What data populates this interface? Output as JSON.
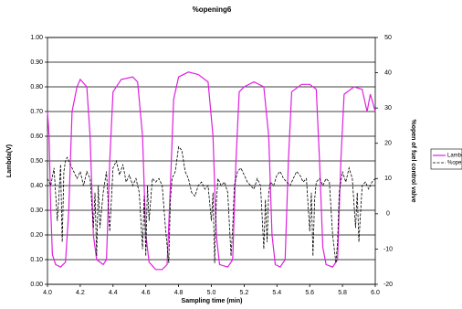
{
  "chart_data": {
    "type": "line",
    "title": "%opening6",
    "xlabel": "Sampling time (min)",
    "ylabel": "Lambda(V)",
    "y2label": "%open of fuel control valve",
    "xlim": [
      4.0,
      6.0
    ],
    "xticks": [
      {
        "value": 4.0,
        "label": "4.0"
      },
      {
        "value": 4.2,
        "label": "4.2"
      },
      {
        "value": 4.4,
        "label": "4.4"
      },
      {
        "value": 4.6,
        "label": "4.6"
      },
      {
        "value": 4.8,
        "label": "4.8"
      },
      {
        "value": 5.0,
        "label": "5.0"
      },
      {
        "value": 5.2,
        "label": "5.2"
      },
      {
        "value": 5.4,
        "label": "5.4"
      },
      {
        "value": 5.6,
        "label": "5.6"
      },
      {
        "value": 5.8,
        "label": "5.8"
      },
      {
        "value": 6.0,
        "label": "6.0"
      }
    ],
    "ylim": [
      0,
      1
    ],
    "yticks": [
      {
        "value": 0,
        "label": "0.00"
      },
      {
        "value": 0.1,
        "label": "0.10"
      },
      {
        "value": 0.2,
        "label": "0.20"
      },
      {
        "value": 0.3,
        "label": "0.30"
      },
      {
        "value": 0.4,
        "label": "0.40"
      },
      {
        "value": 0.5,
        "label": "0.50"
      },
      {
        "value": 0.6,
        "label": "0.60"
      },
      {
        "value": 0.7,
        "label": "0.70"
      },
      {
        "value": 0.8,
        "label": "0.80"
      },
      {
        "value": 0.9,
        "label": "0.90"
      },
      {
        "value": 1,
        "label": "1.00"
      }
    ],
    "y2lim": [
      -20,
      50
    ],
    "y2ticks": [
      -20,
      -10,
      0,
      10,
      20,
      30,
      40,
      50
    ],
    "grid": true,
    "legend": "right",
    "series": [
      {
        "name": "Lambda",
        "color": "#e020e0",
        "dash": false,
        "x": [
          4.0,
          4.01,
          4.02,
          4.03,
          4.05,
          4.08,
          4.11,
          4.13,
          4.15,
          4.18,
          4.2,
          4.24,
          4.26,
          4.28,
          4.3,
          4.34,
          4.36,
          4.38,
          4.4,
          4.45,
          4.52,
          4.55,
          4.58,
          4.6,
          4.62,
          4.66,
          4.7,
          4.73,
          4.75,
          4.77,
          4.8,
          4.86,
          4.92,
          4.98,
          5.01,
          5.03,
          5.05,
          5.1,
          5.13,
          5.15,
          5.17,
          5.2,
          5.26,
          5.32,
          5.35,
          5.37,
          5.39,
          5.42,
          5.45,
          5.47,
          5.49,
          5.55,
          5.6,
          5.64,
          5.66,
          5.68,
          5.7,
          5.74,
          5.77,
          5.79,
          5.81,
          5.87,
          5.92,
          5.95,
          5.97,
          6.0
        ],
        "values": [
          0.7,
          0.6,
          0.3,
          0.12,
          0.08,
          0.07,
          0.09,
          0.3,
          0.7,
          0.8,
          0.83,
          0.8,
          0.6,
          0.2,
          0.1,
          0.08,
          0.1,
          0.5,
          0.78,
          0.83,
          0.84,
          0.82,
          0.6,
          0.2,
          0.09,
          0.06,
          0.06,
          0.08,
          0.4,
          0.75,
          0.84,
          0.86,
          0.85,
          0.82,
          0.6,
          0.2,
          0.08,
          0.07,
          0.1,
          0.5,
          0.78,
          0.8,
          0.82,
          0.8,
          0.6,
          0.2,
          0.08,
          0.07,
          0.1,
          0.5,
          0.78,
          0.81,
          0.81,
          0.79,
          0.5,
          0.15,
          0.08,
          0.07,
          0.1,
          0.5,
          0.77,
          0.8,
          0.79,
          0.7,
          0.77,
          0.7
        ]
      },
      {
        "name": "%open",
        "color": "#000000",
        "dash": true,
        "axis": "y2",
        "x": [
          4.0,
          4.02,
          4.04,
          4.06,
          4.07,
          4.08,
          4.09,
          4.1,
          4.11,
          4.12,
          4.14,
          4.16,
          4.18,
          4.2,
          4.22,
          4.24,
          4.26,
          4.28,
          4.29,
          4.3,
          4.31,
          4.32,
          4.34,
          4.36,
          4.38,
          4.4,
          4.42,
          4.44,
          4.46,
          4.48,
          4.5,
          4.52,
          4.54,
          4.56,
          4.58,
          4.59,
          4.6,
          4.61,
          4.62,
          4.64,
          4.66,
          4.68,
          4.7,
          4.72,
          4.74,
          4.75,
          4.76,
          4.78,
          4.8,
          4.82,
          4.84,
          4.86,
          4.88,
          4.9,
          4.92,
          4.94,
          4.96,
          4.98,
          5.0,
          5.01,
          5.02,
          5.03,
          5.04,
          5.06,
          5.08,
          5.1,
          5.12,
          5.13,
          5.14,
          5.16,
          5.18,
          5.2,
          5.22,
          5.24,
          5.26,
          5.28,
          5.3,
          5.32,
          5.33,
          5.34,
          5.35,
          5.36,
          5.38,
          5.4,
          5.42,
          5.44,
          5.46,
          5.48,
          5.5,
          5.52,
          5.54,
          5.56,
          5.58,
          5.6,
          5.61,
          5.62,
          5.63,
          5.64,
          5.66,
          5.68,
          5.7,
          5.72,
          5.74,
          5.76,
          5.77,
          5.78,
          5.8,
          5.82,
          5.84,
          5.86,
          5.88,
          5.89,
          5.9,
          5.92,
          5.94,
          5.96,
          5.98,
          6.0
        ],
        "values": [
          10,
          8,
          13,
          -2,
          5,
          14,
          -8,
          12,
          15,
          16,
          14,
          12,
          10,
          12,
          8,
          12,
          10,
          -4,
          6,
          -12,
          8,
          -4,
          6,
          12,
          -5,
          13,
          15,
          11,
          14,
          9,
          11,
          8,
          10,
          6,
          -10,
          5,
          -12,
          8,
          -2,
          10,
          9,
          10,
          8,
          -4,
          -14,
          4,
          10,
          12,
          19,
          18,
          12,
          10,
          6,
          5,
          8,
          9,
          7,
          8,
          -2,
          6,
          -14,
          3,
          10,
          8,
          9,
          6,
          -12,
          -4,
          8,
          12,
          13,
          11,
          9,
          8,
          7,
          10,
          8,
          -10,
          4,
          -8,
          6,
          9,
          8,
          11,
          12,
          10,
          9,
          8,
          10,
          12,
          11,
          9,
          10,
          -5,
          6,
          -12,
          4,
          9,
          10,
          8,
          10,
          9,
          -6,
          -14,
          -8,
          6,
          12,
          9,
          13,
          10,
          -4,
          6,
          -8,
          8,
          9,
          7,
          9,
          10
        ]
      }
    ]
  }
}
